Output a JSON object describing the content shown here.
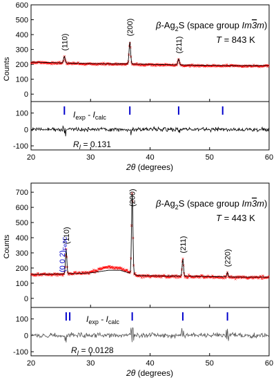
{
  "chart_data": [
    {
      "type": "scatter",
      "title": "β-Ag2S (space group Im3̄m)",
      "title_parts": {
        "beta": "β",
        "compound_a": "-Ag",
        "sub2": "2",
        "compound_b": "S (space group ",
        "sg_I": "I",
        "sg_m": "m",
        "sg_bar3": "3",
        "sg_m2": "m",
        "close": ")"
      },
      "temperature": {
        "symbol": "T",
        "value": "= 843 K"
      },
      "ylabel": "Counts",
      "xlabel": {
        "theta": "2θ",
        "unit": "(degrees)"
      },
      "xlim": [
        20,
        60
      ],
      "xticks": [
        "20",
        "30",
        "40",
        "50",
        "60"
      ],
      "main_panel": {
        "ylim": [
          -50,
          600
        ],
        "yticks": [
          "0",
          "100",
          "200",
          "300",
          "400",
          "500",
          "600"
        ],
        "series": [
          {
            "kind": "observed",
            "color": "#ff0000",
            "baseline": [
              [
                20,
                215
              ],
              [
                25,
                210
              ],
              [
                30,
                205
              ],
              [
                35,
                203
              ],
              [
                40,
                200
              ],
              [
                45,
                196
              ],
              [
                50,
                193
              ],
              [
                55,
                191
              ],
              [
                60,
                192
              ]
            ],
            "noise": 10
          },
          {
            "kind": "calculated",
            "color": "#000000",
            "baseline": [
              [
                20,
                215
              ],
              [
                25,
                210
              ],
              [
                30,
                205
              ],
              [
                35,
                203
              ],
              [
                40,
                200
              ],
              [
                45,
                196
              ],
              [
                50,
                193
              ],
              [
                55,
                191
              ],
              [
                60,
                192
              ]
            ]
          }
        ],
        "peaks": [
          {
            "x": 25.6,
            "height": 45,
            "label": "(110)"
          },
          {
            "x": 36.6,
            "height": 150,
            "label": "(200)"
          },
          {
            "x": 44.8,
            "height": 40,
            "label": "(211)"
          }
        ]
      },
      "diff_panel": {
        "ylim": [
          -125,
          170
        ],
        "yticks": [
          "100",
          "0",
          "-100"
        ],
        "label": {
          "I": "I",
          "exp": "exp",
          "minus": " - ",
          "I2": "I",
          "calc": "calc"
        },
        "bragg_ticks": [
          25.6,
          36.6,
          44.8,
          52.2
        ],
        "bragg_color": "#0000cc",
        "noise": 18,
        "r_factor": {
          "R": "R",
          "sub": "I",
          "value": " = 0.131"
        }
      }
    },
    {
      "type": "scatter",
      "title": "β-Ag2S (space group Im3̄m)",
      "title_parts": {
        "beta": "β",
        "compound_a": "-Ag",
        "sub2": "2",
        "compound_b": "S (space group ",
        "sg_I": "I",
        "sg_m": "m",
        "sg_bar3": "3",
        "sg_m2": "m",
        "close": ")"
      },
      "temperature": {
        "symbol": "T",
        "value": "= 443 K"
      },
      "ylabel": "Counts",
      "xlabel": {
        "theta": "2θ",
        "unit": "(degrees)"
      },
      "xlim": [
        20,
        60
      ],
      "xticks": [
        "20",
        "30",
        "40",
        "50",
        "60"
      ],
      "main_panel": {
        "ylim": [
          -60,
          760
        ],
        "yticks": [
          "0",
          "100",
          "200",
          "300",
          "400",
          "500",
          "600",
          "700"
        ],
        "series": [
          {
            "kind": "observed",
            "color": "#ff0000",
            "baseline": [
              [
                20,
                160
              ],
              [
                25,
                160
              ],
              [
                30,
                175
              ],
              [
                33,
                210
              ],
              [
                35,
                200
              ],
              [
                38,
                150
              ],
              [
                42,
                148
              ],
              [
                48,
                145
              ],
              [
                55,
                140
              ],
              [
                60,
                140
              ]
            ],
            "noise": 14
          },
          {
            "kind": "calculated",
            "color": "#000000",
            "baseline": [
              [
                20,
                158
              ],
              [
                25,
                160
              ],
              [
                30,
                168
              ],
              [
                33,
                185
              ],
              [
                35,
                185
              ],
              [
                38,
                150
              ],
              [
                42,
                148
              ],
              [
                48,
                145
              ],
              [
                55,
                140
              ],
              [
                60,
                140
              ]
            ]
          }
        ],
        "peaks": [
          {
            "x": 25.9,
            "height": 160,
            "label": "(110)"
          },
          {
            "x": 37.0,
            "height": 550,
            "label": "(200)"
          },
          {
            "x": 45.5,
            "height": 115,
            "label": "(211)"
          },
          {
            "x": 53.0,
            "height": 30,
            "label": "(220)"
          }
        ],
        "impurity": {
          "x": 26.5,
          "label_a": "(0 0 2)",
          "label_sub": "Fe3C",
          "color": "#0000cc"
        }
      },
      "diff_panel": {
        "ylim": [
          -125,
          170
        ],
        "yticks": [
          "100",
          "0",
          "-100"
        ],
        "label": {
          "I": "I",
          "exp": "exp",
          "minus": " - ",
          "I2": "I",
          "calc": "calc"
        },
        "bragg_ticks": [
          25.9,
          26.5,
          37.0,
          45.5,
          53.0
        ],
        "bragg_color": "#0000cc",
        "noise": 22,
        "r_factor": {
          "R": "R",
          "sub": "I",
          "value": " = 0.0128"
        }
      }
    }
  ]
}
